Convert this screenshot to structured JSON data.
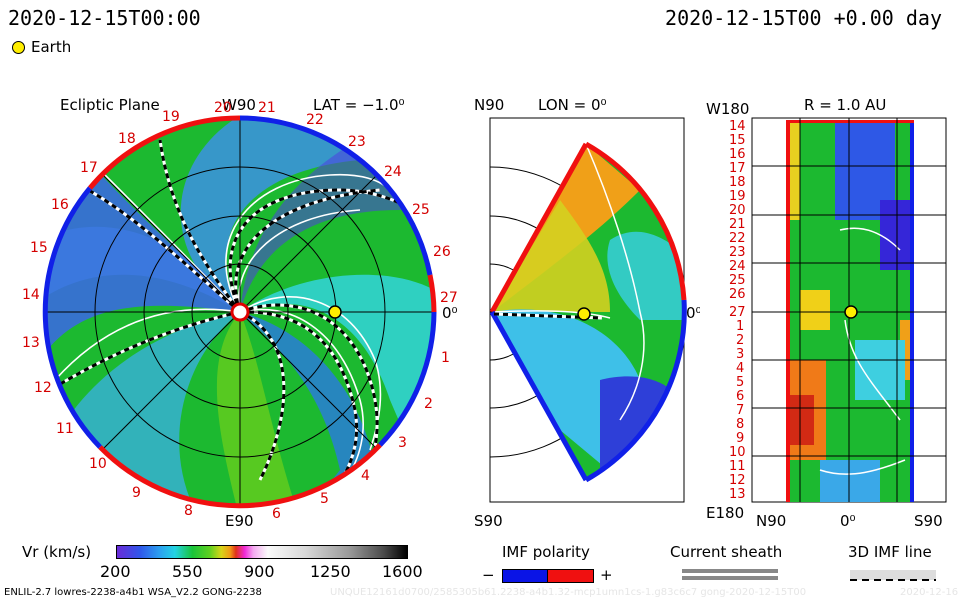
{
  "header": {
    "timestamp_left": "2020-12-15T00:00",
    "timestamp_right": "2020-12-15T00 +0.00 day",
    "legend_label": "Earth",
    "legend_color": "#ffee00"
  },
  "panel_ecliptic": {
    "title": "Ecliptic Plane",
    "lat_label": "LAT = −1.0⁰",
    "top_label": "W90",
    "bottom_label": "E90",
    "right_label": "0⁰",
    "day_numbers": [
      "20",
      "21",
      "22",
      "23",
      "24",
      "25",
      "26",
      "27",
      "1",
      "2",
      "3",
      "4",
      "5",
      "6",
      "7",
      "8",
      "9",
      "10",
      "11",
      "12",
      "13",
      "14",
      "15",
      "16",
      "17",
      "18",
      "19"
    ]
  },
  "panel_meridional": {
    "top_label": "N90",
    "lon_label": "LON = 0⁰",
    "bottom_label": "S90",
    "right_label": "0⁰"
  },
  "panel_synoptic": {
    "top_left_label": "W180",
    "r_label": "R = 1.0 AU",
    "bottom_left_label": "E180",
    "bottom_labels": [
      "N90",
      "0⁰",
      "S90"
    ],
    "row_labels": [
      "14",
      "15",
      "16",
      "17",
      "18",
      "19",
      "20",
      "21",
      "22",
      "23",
      "24",
      "25",
      "26",
      "27",
      "1",
      "2",
      "3",
      "4",
      "5",
      "6",
      "7",
      "8",
      "9",
      "10",
      "11",
      "12",
      "13"
    ]
  },
  "colorbar": {
    "title": "Vr (km/s)",
    "ticks": [
      "200",
      "550",
      "900",
      "1250",
      "1600"
    ],
    "range": [
      200,
      1600
    ]
  },
  "imf_legend": {
    "title": "IMF polarity",
    "minus": "−",
    "plus": "+",
    "neg_color": "#0a14e6",
    "pos_color": "#f01010"
  },
  "sheath_legend": {
    "title": "Current sheath"
  },
  "imf_line_legend": {
    "title": "3D IMF line"
  },
  "footer": {
    "model_text": "ENLIL-2.7 lowres-2238-a4b1 WSA_V2.2 GONG-2238",
    "faint_text": "UNQUE12161d0700/2585305b61.2238-a4b1.32-mcp1umn1cs-1.g83c6c7 gong-2020-12-15T00",
    "date_text": "2020-12-16"
  }
}
